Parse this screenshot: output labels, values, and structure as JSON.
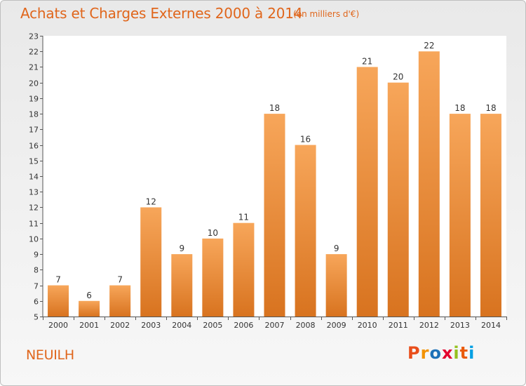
{
  "chart_data": {
    "type": "bar",
    "title": "Achats et Charges Externes 2000 à 2014",
    "unit_label": "(en milliers d'€)",
    "categories": [
      "2000",
      "2001",
      "2002",
      "2003",
      "2004",
      "2005",
      "2006",
      "2007",
      "2008",
      "2009",
      "2010",
      "2011",
      "2012",
      "2013",
      "2014"
    ],
    "values": [
      7,
      6,
      7,
      12,
      9,
      10,
      11,
      18,
      16,
      9,
      21,
      20,
      22,
      18,
      18
    ],
    "ylim": [
      5,
      23
    ],
    "yticks": [
      5,
      6,
      7,
      8,
      9,
      10,
      11,
      12,
      13,
      14,
      15,
      16,
      17,
      18,
      19,
      20,
      21,
      22,
      23
    ],
    "xlabel": "",
    "ylabel": "",
    "grid": false,
    "bar_color_top": "#f7a65a",
    "bar_color_bottom": "#d8731f"
  },
  "commune": "NEUILH",
  "logo": {
    "letters": [
      "P",
      "r",
      "o",
      "x",
      "i",
      "t",
      "i"
    ],
    "colors": [
      "#e94e1b",
      "#f39200",
      "#1d71b8",
      "#e4032e",
      "#95c11f",
      "#ea5b0c",
      "#009fe3"
    ]
  }
}
